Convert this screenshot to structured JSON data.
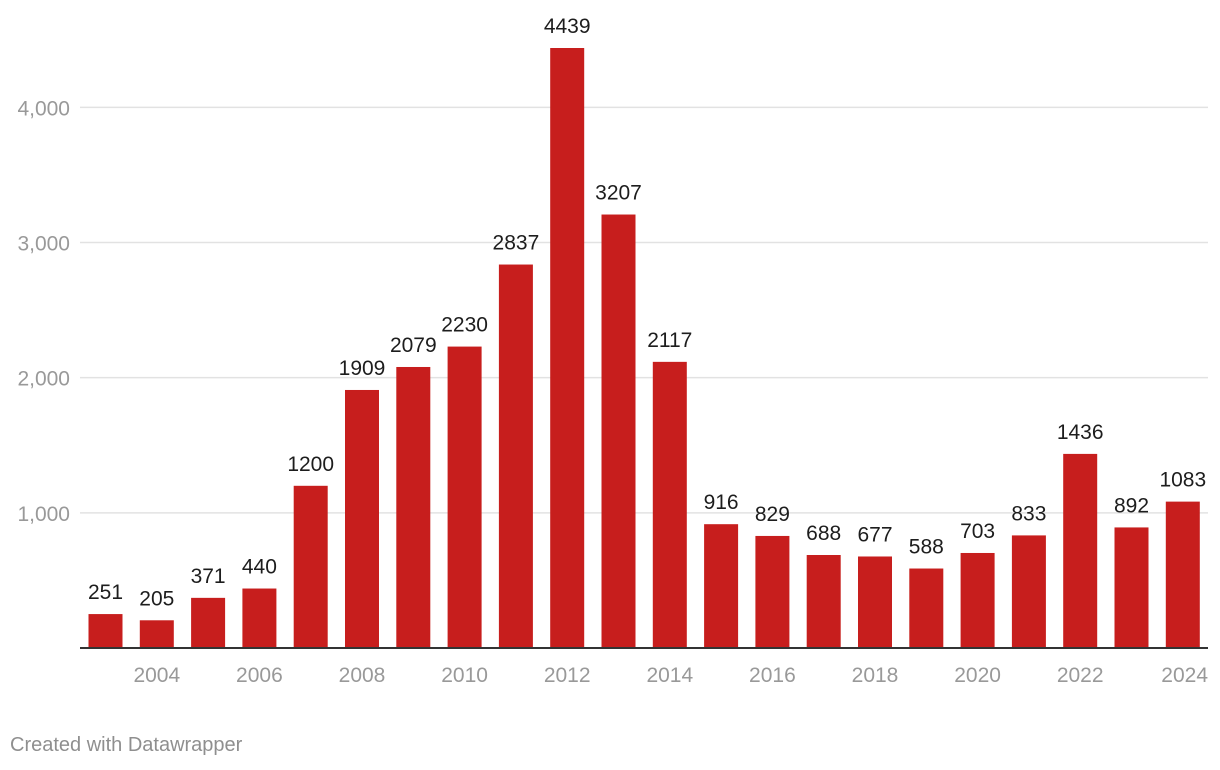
{
  "chart_data": {
    "type": "bar",
    "categories": [
      "2003",
      "2004",
      "2005",
      "2006",
      "2007",
      "2008",
      "2009",
      "2010",
      "2011",
      "2012",
      "2013",
      "2014",
      "2015",
      "2016",
      "2017",
      "2018",
      "2019",
      "2020",
      "2021",
      "2022",
      "2023",
      "2024"
    ],
    "values": [
      251,
      205,
      371,
      440,
      1200,
      1909,
      2079,
      2230,
      2837,
      4439,
      3207,
      2117,
      916,
      829,
      688,
      677,
      588,
      703,
      833,
      1436,
      892,
      1083
    ],
    "x_tick_labels": [
      "2004",
      "2006",
      "2008",
      "2010",
      "2012",
      "2014",
      "2016",
      "2018",
      "2020",
      "2022",
      "2024"
    ],
    "y_ticks": [
      1000,
      2000,
      3000,
      4000
    ],
    "y_tick_labels": [
      "1,000",
      "2,000",
      "3,000",
      "4,000"
    ],
    "ylim": [
      0,
      4439
    ],
    "grid": true,
    "bar_color": "#c71e1d",
    "label_color": "#1d1d1d",
    "tick_color": "#999999",
    "grid_color": "#e2e2e2"
  },
  "footer": {
    "credit": "Created with Datawrapper"
  }
}
